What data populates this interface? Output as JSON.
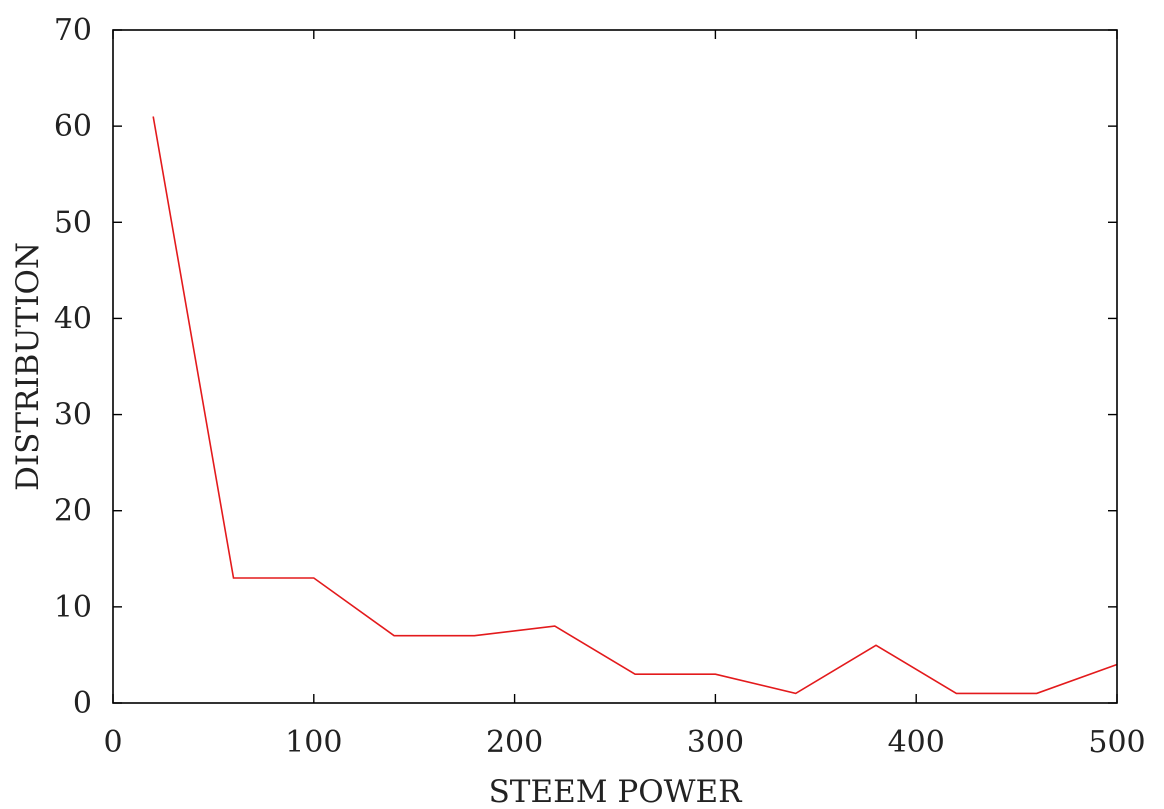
{
  "chart_data": {
    "type": "line",
    "title": "",
    "xlabel": "STEEM POWER",
    "ylabel": "DISTRIBUTION",
    "xlim": [
      0,
      500
    ],
    "ylim": [
      0,
      70
    ],
    "x_ticks": [
      0,
      100,
      200,
      300,
      400,
      500
    ],
    "y_ticks": [
      0,
      10,
      20,
      30,
      40,
      50,
      60,
      70
    ],
    "grid": false,
    "legend": "none",
    "series": [
      {
        "color": "#e31a1c",
        "x": [
          20,
          60,
          100,
          140,
          180,
          220,
          260,
          300,
          340,
          380,
          420,
          460,
          500
        ],
        "y": [
          61,
          13,
          13,
          7,
          7,
          8,
          3,
          3,
          1,
          6,
          1,
          1,
          4
        ]
      }
    ]
  }
}
